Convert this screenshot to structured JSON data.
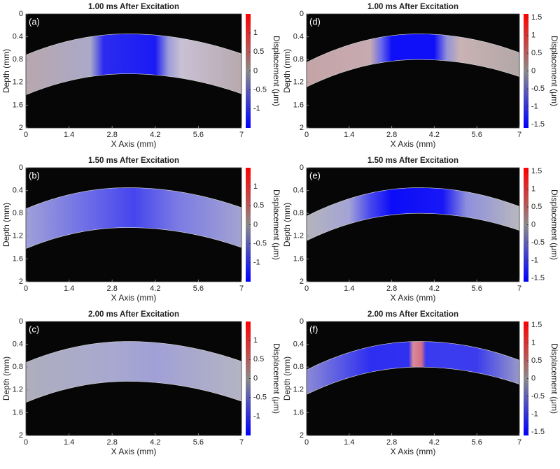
{
  "chart_data": [
    {
      "type": "heatmap",
      "panel_label": "(a)",
      "title": "1.00 ms After Excitation",
      "xlabel": "X Axis (mm)",
      "ylabel": "Depth (mm)",
      "colorbar_label": "Displacement (μm)",
      "xlim": [
        0,
        7
      ],
      "xticks": [
        0,
        1.4,
        2.8,
        4.2,
        5.6,
        7
      ],
      "ylim": [
        0,
        2
      ],
      "y_reversed": true,
      "yticks": [
        0,
        0.4,
        0.8,
        1.2,
        1.6,
        2
      ],
      "clim": [
        -1.5,
        1.5
      ],
      "cticks": [
        1,
        0.5,
        0,
        -0.5,
        -1
      ],
      "colormap": [
        "#0000ff",
        "#8a8a8a",
        "#ff0000"
      ]
    },
    {
      "type": "heatmap",
      "panel_label": "(b)",
      "title": "1.50 ms After Excitation",
      "xlabel": "X Axis (mm)",
      "ylabel": "Depth (mm)",
      "colorbar_label": "Displacement (μm)",
      "xlim": [
        0,
        7
      ],
      "xticks": [
        0,
        1.4,
        2.8,
        4.2,
        5.6,
        7
      ],
      "ylim": [
        0,
        2
      ],
      "y_reversed": true,
      "yticks": [
        0,
        0.4,
        0.8,
        1.2,
        1.6,
        2
      ],
      "clim": [
        -1.5,
        1.5
      ],
      "cticks": [
        1,
        0.5,
        0,
        -0.5,
        -1
      ],
      "colormap": [
        "#0000ff",
        "#8a8a8a",
        "#ff0000"
      ]
    },
    {
      "type": "heatmap",
      "panel_label": "(c)",
      "title": "2.00 ms After Excitation",
      "xlabel": "X Axis (mm)",
      "ylabel": "Depth (mm)",
      "colorbar_label": "Displacement (μm)",
      "xlim": [
        0,
        7
      ],
      "xticks": [
        0,
        1.4,
        2.8,
        4.2,
        5.6,
        7
      ],
      "ylim": [
        0,
        2
      ],
      "y_reversed": true,
      "yticks": [
        0,
        0.4,
        0.8,
        1.2,
        1.6,
        2
      ],
      "clim": [
        -1.5,
        1.5
      ],
      "cticks": [
        1,
        0.5,
        0,
        -0.5,
        -1
      ],
      "colormap": [
        "#0000ff",
        "#8a8a8a",
        "#ff0000"
      ]
    },
    {
      "type": "heatmap",
      "panel_label": "(d)",
      "title": "1.00 ms After Excitation",
      "xlabel": "X Axis (mm)",
      "ylabel": "Depth (mm)",
      "colorbar_label": "Displacement (μm)",
      "xlim": [
        0,
        7
      ],
      "xticks": [
        0,
        1.4,
        2.8,
        4.2,
        5.6,
        7
      ],
      "ylim": [
        0,
        2
      ],
      "y_reversed": true,
      "yticks": [
        0,
        0.4,
        0.8,
        1.2,
        1.6,
        2
      ],
      "clim": [
        -1.6,
        1.6
      ],
      "cticks": [
        1.5,
        1,
        0.5,
        0,
        -0.5,
        -1,
        -1.5
      ],
      "colormap": [
        "#0000ff",
        "#8a8a8a",
        "#ff0000"
      ]
    },
    {
      "type": "heatmap",
      "panel_label": "(e)",
      "title": "1.50 ms After Excitation",
      "xlabel": "X Axis (mm)",
      "ylabel": "Depth (mm)",
      "colorbar_label": "Displacement (μm)",
      "xlim": [
        0,
        7
      ],
      "xticks": [
        0,
        1.4,
        2.8,
        4.2,
        5.6,
        7
      ],
      "ylim": [
        0,
        2
      ],
      "y_reversed": true,
      "yticks": [
        0,
        0.4,
        0.8,
        1.2,
        1.6,
        2
      ],
      "clim": [
        -1.6,
        1.6
      ],
      "cticks": [
        1.5,
        1,
        0.5,
        0,
        -0.5,
        -1,
        -1.5
      ],
      "colormap": [
        "#0000ff",
        "#8a8a8a",
        "#ff0000"
      ]
    },
    {
      "type": "heatmap",
      "panel_label": "(f)",
      "title": "2.00 ms After Excitation",
      "xlabel": "X Axis (mm)",
      "ylabel": "Depth (mm)",
      "colorbar_label": "Displacement (μm)",
      "xlim": [
        0,
        7
      ],
      "xticks": [
        0,
        1.4,
        2.8,
        4.2,
        5.6,
        7
      ],
      "ylim": [
        0,
        2
      ],
      "y_reversed": true,
      "yticks": [
        0,
        0.4,
        0.8,
        1.2,
        1.6,
        2
      ],
      "clim": [
        -1.6,
        1.6
      ],
      "cticks": [
        1.5,
        1,
        0.5,
        0,
        -0.5,
        -1,
        -1.5
      ],
      "colormap": [
        "#0000ff",
        "#8a8a8a",
        "#ff0000"
      ]
    }
  ]
}
